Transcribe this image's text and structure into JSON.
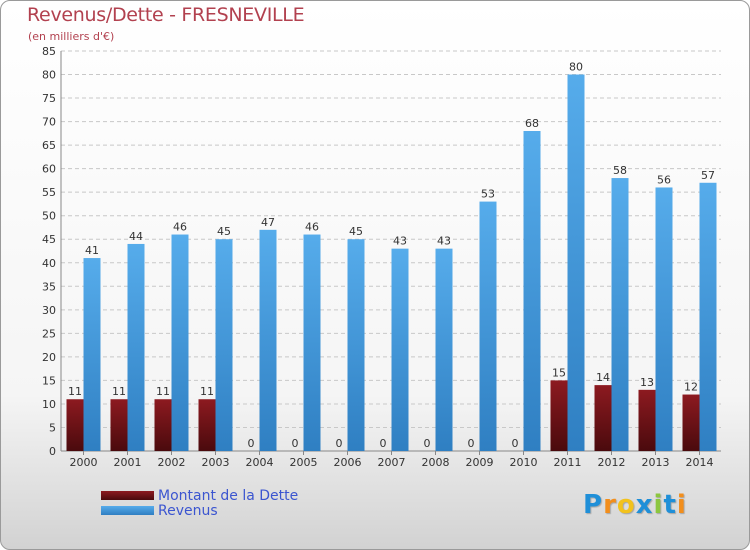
{
  "header": {
    "title": "Revenus/Dette - FRESNEVILLE",
    "subtitle": "(en milliers d'€)"
  },
  "logo": {
    "letters": [
      "P",
      "r",
      "o",
      "x",
      "i",
      "t",
      "i"
    ],
    "colors": [
      "#1f8fd8",
      "#f28e1c",
      "#f2c21c",
      "#1f8fd8",
      "#8cc63f",
      "#1f8fd8",
      "#f28e1c"
    ]
  },
  "chart_data": {
    "type": "bar",
    "categories": [
      "2000",
      "2001",
      "2002",
      "2003",
      "2004",
      "2005",
      "2006",
      "2007",
      "2008",
      "2009",
      "2010",
      "2011",
      "2012",
      "2013",
      "2014"
    ],
    "series": [
      {
        "name": "Montant de la Dette",
        "color": "#7a1217",
        "values": [
          11,
          11,
          11,
          11,
          0,
          0,
          0,
          0,
          0,
          0,
          0,
          15,
          14,
          13,
          12
        ]
      },
      {
        "name": "Revenus",
        "color": "#4b9fe0",
        "values": [
          41,
          44,
          46,
          45,
          47,
          46,
          45,
          43,
          43,
          53,
          68,
          80,
          58,
          56,
          57
        ]
      }
    ],
    "title": "Revenus/Dette - FRESNEVILLE",
    "ylabel": "(en milliers d'€)",
    "ylim": [
      0,
      85
    ],
    "yticks": [
      0,
      5,
      10,
      15,
      20,
      25,
      30,
      35,
      40,
      45,
      50,
      55,
      60,
      65,
      70,
      75,
      80,
      85
    ],
    "grid": true,
    "legend": "bottom-left"
  }
}
